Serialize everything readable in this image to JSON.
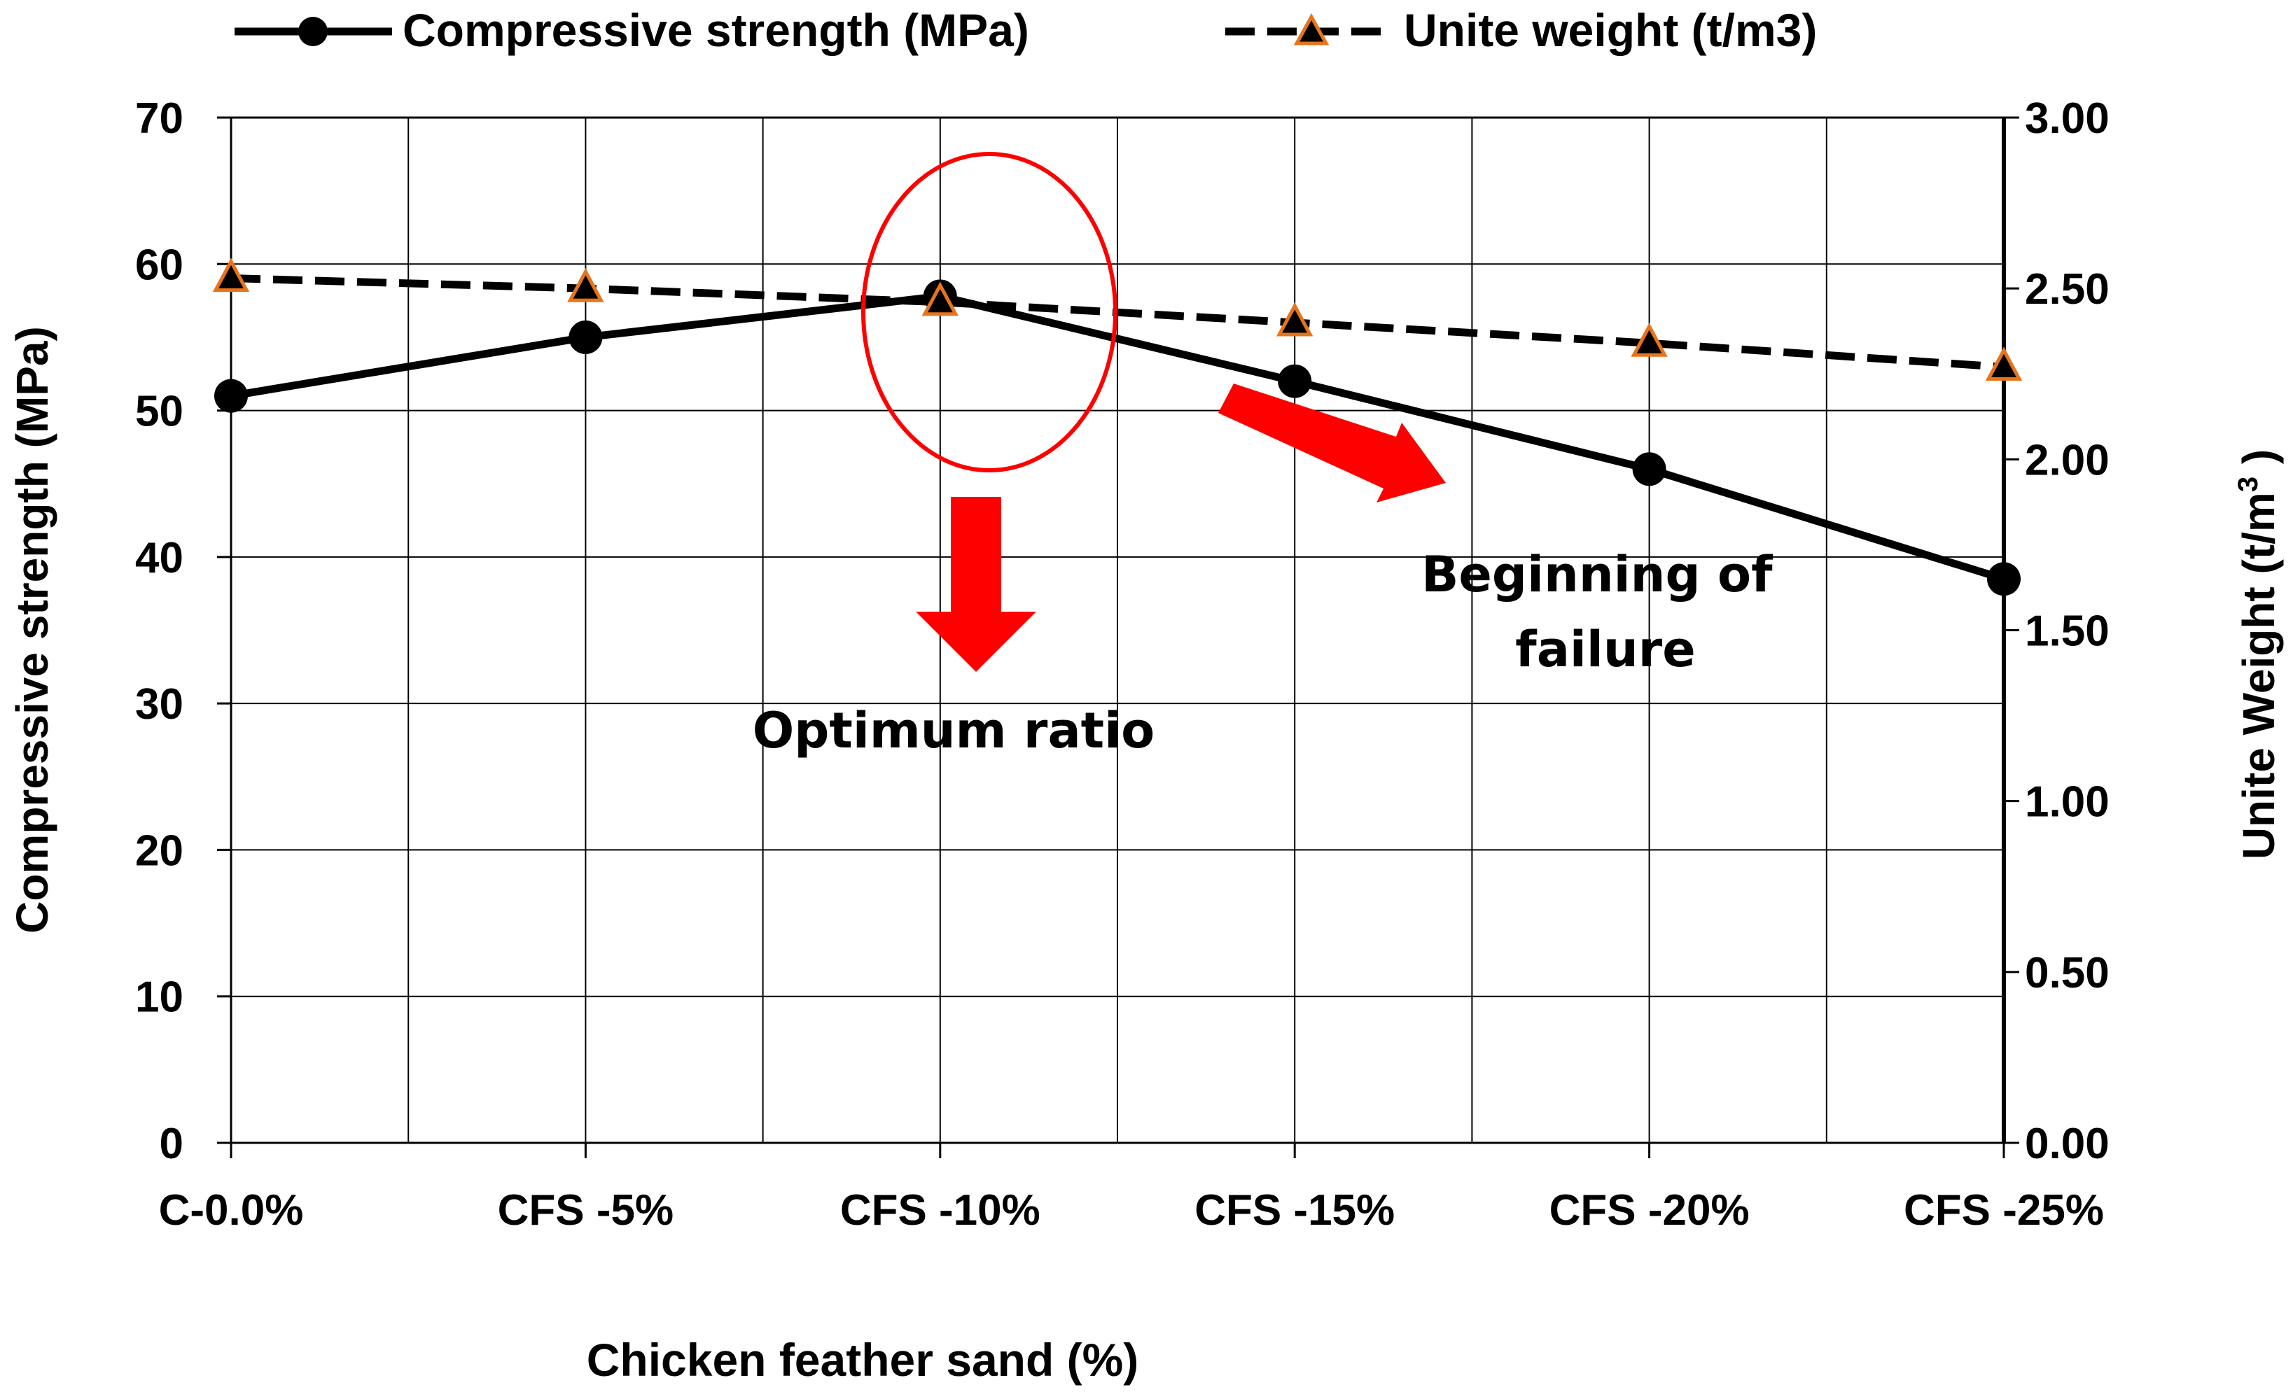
{
  "chart_data": {
    "type": "line",
    "categories": [
      "C-0.0%",
      "CFS -5%",
      "CFS -10%",
      "CFS -15%",
      "CFS -20%",
      "CFS -25%"
    ],
    "xlabel": "Chicken feather sand (%)",
    "ylabel": "Compressive strength (MPa)",
    "y2label_prefix": "Unite Weight  (t/m",
    "y2label_sup": "3",
    "y2label_suffix": " )",
    "ylim": [
      0,
      70
    ],
    "y2lim": [
      0,
      3
    ],
    "yticks": [
      "0",
      "10",
      "20",
      "30",
      "40",
      "50",
      "60",
      "70"
    ],
    "y2ticks": [
      "0.00",
      "0.50",
      "1.00",
      "1.50",
      "2.00",
      "2.50",
      "3.00"
    ],
    "grid": true,
    "legend_position": "top",
    "series": [
      {
        "name": "Compressive strength (MPa)",
        "axis": "left",
        "values": [
          51,
          55,
          57.8,
          52,
          46,
          38.5
        ],
        "line_style": "solid",
        "marker": "circle",
        "color": "#000000"
      },
      {
        "name": "Unite weight  (t/m3)",
        "axis": "right",
        "values": [
          2.53,
          2.5,
          2.46,
          2.4,
          2.34,
          2.27
        ],
        "line_style": "dashed",
        "marker": "triangle",
        "color": "#000000",
        "marker_edge_color": "#e8741a"
      }
    ],
    "annotations": [
      {
        "text": "Optimum ratio",
        "color": "#ff0000"
      },
      {
        "text": "Beginning of failure",
        "lines": [
          "Beginning of",
          "failure"
        ],
        "color": "#ff0000"
      }
    ]
  }
}
